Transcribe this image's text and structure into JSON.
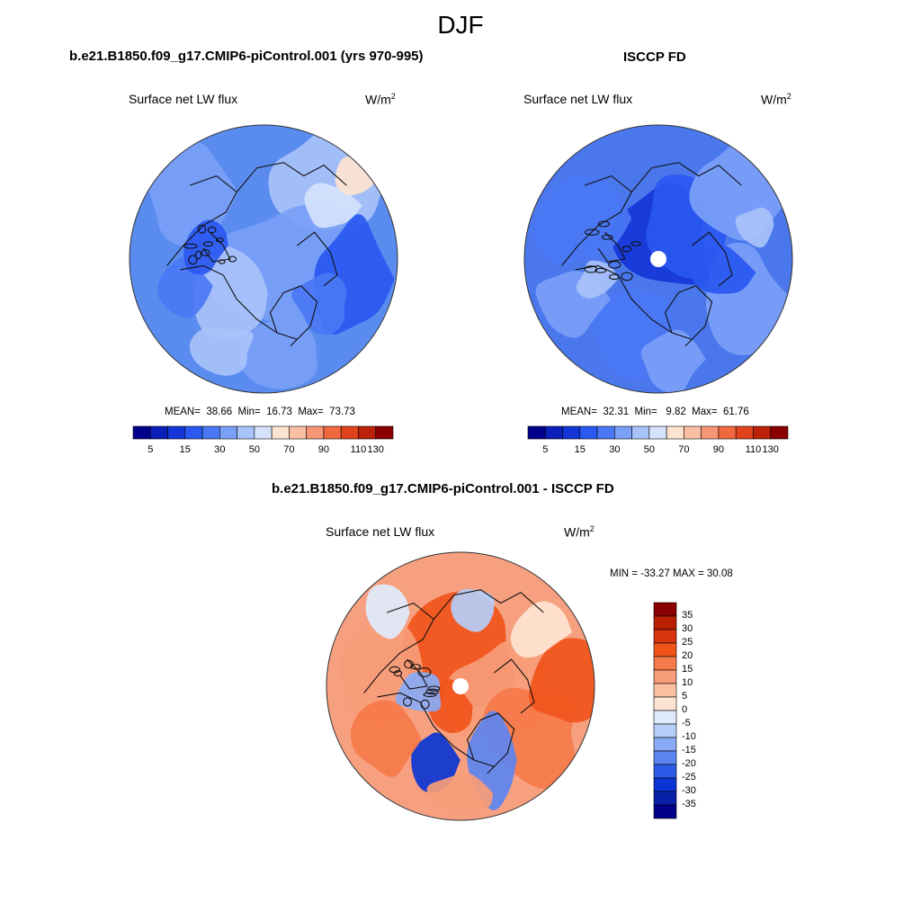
{
  "figure": {
    "title": "DJF",
    "panels": [
      {
        "id": "model",
        "heading": "b.e21.B1850.f09_g17.CMIP6-piControl.001 (yrs 970-995)",
        "variable": "Surface net LW flux",
        "units_base": "W/m",
        "units_exp": "2",
        "stats": {
          "mean_label": "MEAN=",
          "mean": "38.66",
          "min_label": "Min=",
          "min": "16.73",
          "max_label": "Max=",
          "max": "73.73"
        },
        "base_color": "#5a8cf0",
        "hole": false
      },
      {
        "id": "obs",
        "heading": "ISCCP FD",
        "variable": "Surface net LW flux",
        "units_base": "W/m",
        "units_exp": "2",
        "stats": {
          "mean_label": "MEAN=",
          "mean": "32.31",
          "min_label": "Min=",
          "min": "9.82",
          "max_label": "Max=",
          "max": "61.76"
        },
        "base_color": "#4a78ec",
        "hole": true
      },
      {
        "id": "diff",
        "heading": "b.e21.B1850.f09_g17.CMIP6-piControl.001 - ISCCP FD",
        "variable": "Surface net LW flux",
        "units_base": "W/m",
        "units_exp": "2",
        "minmax_text": "MIN = -33.27 MAX =  30.08",
        "base_color": "#f7a080",
        "hole": true
      }
    ],
    "abs_colorbar": {
      "colors": [
        "#00008a",
        "#0a20b8",
        "#1436d8",
        "#2a58f0",
        "#4a78f5",
        "#7a9ff7",
        "#a8c2fa",
        "#d4e2fb",
        "#fde4d0",
        "#fbc0a3",
        "#f79575",
        "#f0683e",
        "#e0421c",
        "#bd2208",
        "#8a0000"
      ],
      "labels": [
        "5",
        "15",
        "30",
        "50",
        "70",
        "90",
        "110",
        "130"
      ]
    },
    "diff_colorbar": {
      "colors": [
        "#8a0000",
        "#b82000",
        "#d83410",
        "#f0541a",
        "#f57a4a",
        "#f79c78",
        "#fac0a0",
        "#fde4d2",
        "#dfeafc",
        "#b5cdf9",
        "#89aaf5",
        "#5c84f0",
        "#2e5ae8",
        "#0a34d4",
        "#0820a8",
        "#00008a"
      ],
      "labels": [
        "35",
        "30",
        "25",
        "20",
        "15",
        "10",
        "5",
        "0",
        "-5",
        "-10",
        "-15",
        "-20",
        "-25",
        "-30",
        "-35"
      ]
    }
  },
  "chart_data": [
    {
      "type": "heatmap",
      "title": "b.e21.B1850.f09_g17.CMIP6-piControl.001 (yrs 970-995)",
      "variable": "Surface net LW flux",
      "units": "W/m2",
      "projection": "north polar stereographic",
      "mean": 38.66,
      "min": 16.73,
      "max": 73.73,
      "colorbar_levels": [
        5,
        10,
        15,
        20,
        30,
        40,
        50,
        60,
        70,
        80,
        90,
        100,
        110,
        120,
        130
      ]
    },
    {
      "type": "heatmap",
      "title": "ISCCP FD",
      "variable": "Surface net LW flux",
      "units": "W/m2",
      "projection": "north polar stereographic",
      "mean": 32.31,
      "min": 9.82,
      "max": 61.76,
      "colorbar_levels": [
        5,
        10,
        15,
        20,
        30,
        40,
        50,
        60,
        70,
        80,
        90,
        100,
        110,
        120,
        130
      ]
    },
    {
      "type": "heatmap",
      "title": "b.e21.B1850.f09_g17.CMIP6-piControl.001 - ISCCP FD",
      "variable": "Surface net LW flux",
      "units": "W/m2",
      "projection": "north polar stereographic",
      "min": -33.27,
      "max": 30.08,
      "colorbar_levels": [
        35,
        30,
        25,
        20,
        15,
        10,
        5,
        0,
        -5,
        -10,
        -15,
        -20,
        -25,
        -30,
        -35
      ]
    }
  ]
}
